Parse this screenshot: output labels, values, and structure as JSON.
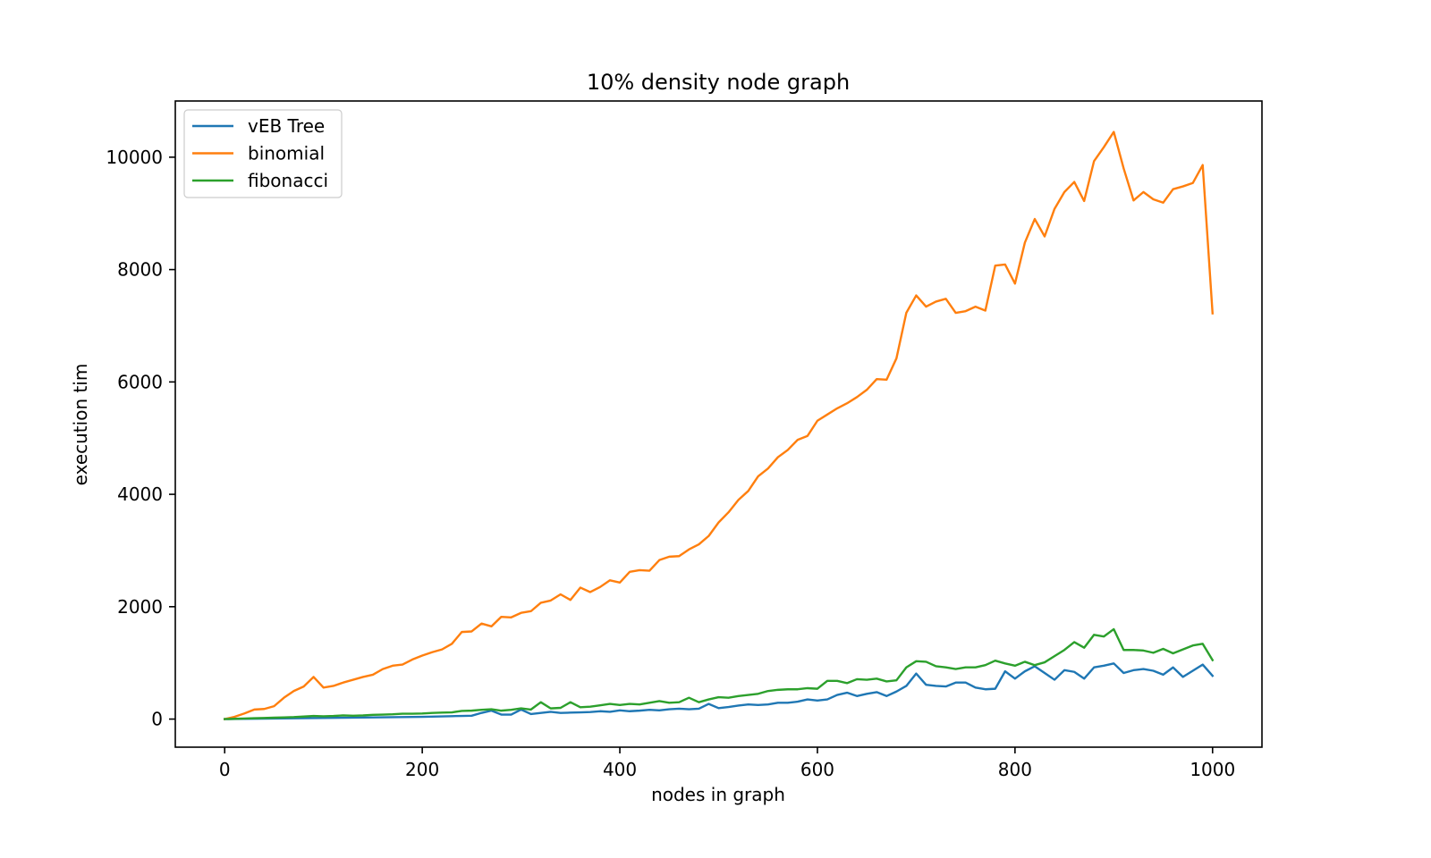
{
  "chart_data": {
    "type": "line",
    "title": "10% density node graph",
    "xlabel": "nodes in graph",
    "ylabel": "execution tim",
    "xlim": [
      -50,
      1050
    ],
    "ylim": [
      -500,
      11000
    ],
    "xticks": [
      0,
      200,
      400,
      600,
      800,
      1000
    ],
    "yticks": [
      0,
      2000,
      4000,
      6000,
      8000,
      10000
    ],
    "legend_position": "top-left",
    "x": [
      0,
      10,
      20,
      30,
      40,
      50,
      60,
      70,
      80,
      90,
      100,
      110,
      120,
      130,
      140,
      150,
      160,
      170,
      180,
      190,
      200,
      210,
      220,
      230,
      240,
      250,
      260,
      270,
      280,
      290,
      300,
      310,
      320,
      330,
      340,
      350,
      360,
      370,
      380,
      390,
      400,
      410,
      420,
      430,
      440,
      450,
      460,
      470,
      480,
      490,
      500,
      510,
      520,
      530,
      540,
      550,
      560,
      570,
      580,
      590,
      600,
      610,
      620,
      630,
      640,
      650,
      660,
      670,
      680,
      690,
      700,
      710,
      720,
      730,
      740,
      750,
      760,
      770,
      780,
      790,
      800,
      810,
      820,
      830,
      840,
      850,
      860,
      870,
      880,
      890,
      900,
      910,
      920,
      930,
      940,
      950,
      960,
      970,
      980,
      990,
      1000
    ],
    "series": [
      {
        "name": "vEB Tree",
        "color": "#1f77b4",
        "values": [
          0,
          3,
          5,
          7,
          9,
          10,
          12,
          14,
          16,
          18,
          20,
          22,
          24,
          26,
          28,
          30,
          32,
          34,
          36,
          38,
          40,
          44,
          48,
          52,
          56,
          60,
          110,
          150,
          80,
          80,
          170,
          90,
          110,
          130,
          110,
          115,
          120,
          125,
          140,
          130,
          155,
          140,
          150,
          165,
          155,
          175,
          185,
          175,
          185,
          270,
          195,
          215,
          240,
          260,
          250,
          260,
          290,
          290,
          310,
          350,
          330,
          350,
          430,
          470,
          410,
          450,
          480,
          410,
          490,
          590,
          810,
          610,
          590,
          580,
          650,
          650,
          560,
          530,
          540,
          850,
          720,
          850,
          940,
          820,
          700,
          870,
          840,
          720,
          920,
          950,
          990,
          820,
          870,
          890,
          860,
          790,
          920,
          750,
          860,
          970,
          770
        ]
      },
      {
        "name": "binomial",
        "color": "#ff7f0e",
        "values": [
          0,
          40,
          100,
          170,
          180,
          230,
          380,
          500,
          580,
          750,
          560,
          590,
          650,
          700,
          750,
          790,
          890,
          950,
          970,
          1060,
          1130,
          1190,
          1240,
          1340,
          1550,
          1560,
          1700,
          1650,
          1820,
          1810,
          1890,
          1920,
          2070,
          2110,
          2220,
          2120,
          2340,
          2260,
          2350,
          2470,
          2430,
          2620,
          2650,
          2640,
          2830,
          2890,
          2900,
          3020,
          3110,
          3260,
          3500,
          3680,
          3900,
          4060,
          4320,
          4460,
          4660,
          4790,
          4970,
          5040,
          5310,
          5420,
          5530,
          5620,
          5730,
          5860,
          6050,
          6040,
          6420,
          7230,
          7540,
          7340,
          7430,
          7480,
          7230,
          7260,
          7340,
          7270,
          8070,
          8090,
          7750,
          8480,
          8900,
          8590,
          9080,
          9380,
          9560,
          9220,
          9930,
          10180,
          10450,
          9800,
          9230,
          9380,
          9250,
          9190,
          9430,
          9480,
          9540,
          9860,
          7220
        ]
      },
      {
        "name": "fibonacci",
        "color": "#2ca02c",
        "values": [
          0,
          5,
          10,
          15,
          20,
          25,
          30,
          35,
          45,
          55,
          50,
          55,
          65,
          60,
          65,
          75,
          80,
          85,
          95,
          95,
          100,
          110,
          115,
          120,
          145,
          150,
          165,
          175,
          150,
          165,
          190,
          170,
          300,
          190,
          200,
          300,
          210,
          220,
          245,
          270,
          250,
          270,
          260,
          290,
          320,
          290,
          300,
          380,
          300,
          350,
          390,
          380,
          410,
          430,
          450,
          500,
          520,
          530,
          530,
          550,
          540,
          680,
          680,
          640,
          710,
          700,
          720,
          670,
          690,
          920,
          1030,
          1020,
          940,
          920,
          890,
          920,
          920,
          960,
          1040,
          990,
          950,
          1020,
          960,
          1010,
          1120,
          1230,
          1370,
          1270,
          1500,
          1470,
          1600,
          1230,
          1230,
          1220,
          1180,
          1250,
          1170,
          1240,
          1310,
          1340,
          1050
        ]
      }
    ]
  }
}
